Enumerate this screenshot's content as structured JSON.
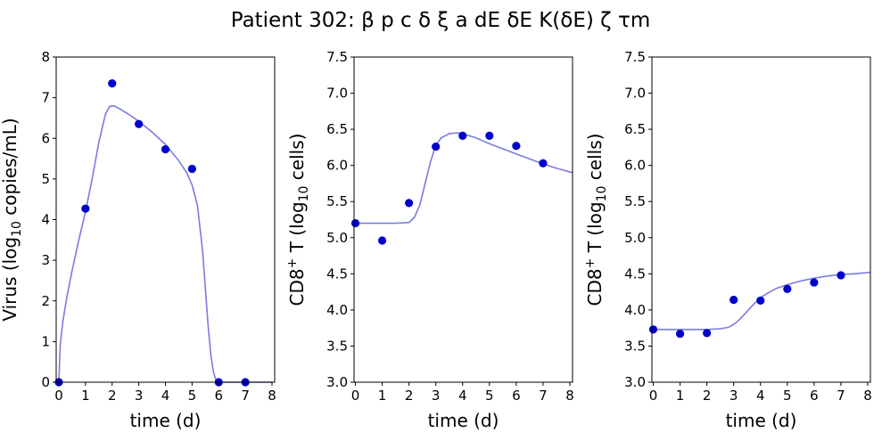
{
  "title": "Patient 302: β p c δ ξ a dE δE K(δE) ζ τm",
  "colors": {
    "points": "#0000cc",
    "fit": "#7b7bdf"
  },
  "chart_data": [
    {
      "type": "scatter",
      "xlabel": "time (d)",
      "ylabel": {
        "main": "Virus (log",
        "sub": "10",
        "tail": " copies/mL)"
      },
      "xlim": [
        -0.1,
        8.1
      ],
      "ylim": [
        0,
        8
      ],
      "xticks": [
        "0",
        "1",
        "2",
        "3",
        "4",
        "5",
        "6",
        "7",
        "8"
      ],
      "yticks": [
        "0",
        "1",
        "2",
        "3",
        "4",
        "5",
        "6",
        "7",
        "8"
      ],
      "points": {
        "x": [
          0,
          1,
          2,
          3,
          4,
          5,
          6,
          7
        ],
        "y": [
          0,
          4.27,
          7.35,
          6.35,
          5.73,
          5.25,
          0,
          0
        ]
      },
      "fit": {
        "x": [
          0,
          0.05,
          0.15,
          0.3,
          0.5,
          0.75,
          1,
          1.25,
          1.5,
          1.75,
          1.9,
          2,
          2.1,
          2.3,
          2.6,
          3,
          3.5,
          4,
          4.5,
          4.8,
          5,
          5.2,
          5.4,
          5.5,
          5.6,
          5.7,
          5.8,
          5.9,
          6,
          6.5,
          7,
          7.5,
          8
        ],
        "y": [
          0,
          0.9,
          1.5,
          2.1,
          2.75,
          3.5,
          4.2,
          5.0,
          5.9,
          6.6,
          6.78,
          6.8,
          6.79,
          6.72,
          6.6,
          6.42,
          6.15,
          5.85,
          5.45,
          5.15,
          4.85,
          4.35,
          3.2,
          2.3,
          1.4,
          0.7,
          0.25,
          0.05,
          0,
          0,
          0,
          0,
          0
        ]
      }
    },
    {
      "type": "scatter",
      "xlabel": "time (d)",
      "ylabel": {
        "main": "CD8",
        "sup": "+",
        "mid": " T (log",
        "sub": "10",
        "tail": " cells)"
      },
      "xlim": [
        -0.05,
        8.1
      ],
      "ylim": [
        3.0,
        7.5
      ],
      "xticks": [
        "0",
        "1",
        "2",
        "3",
        "4",
        "5",
        "6",
        "7",
        "8"
      ],
      "yticks": [
        "3.0",
        "3.5",
        "4.0",
        "4.5",
        "5.0",
        "5.5",
        "6.0",
        "6.5",
        "7.0",
        "7.5"
      ],
      "points": {
        "x": [
          0,
          1,
          2,
          3,
          4,
          5,
          6,
          7
        ],
        "y": [
          5.2,
          4.96,
          5.48,
          6.26,
          6.41,
          6.41,
          6.27,
          6.03
        ]
      },
      "fit": {
        "x": [
          0,
          0.5,
          1,
          1.5,
          2,
          2.2,
          2.4,
          2.6,
          2.8,
          3,
          3.2,
          3.5,
          3.8,
          4,
          4.5,
          5,
          5.5,
          6,
          6.5,
          7,
          7.5,
          8.1
        ],
        "y": [
          5.2,
          5.2,
          5.2,
          5.2,
          5.21,
          5.28,
          5.45,
          5.75,
          6.05,
          6.28,
          6.38,
          6.44,
          6.45,
          6.44,
          6.38,
          6.3,
          6.23,
          6.16,
          6.09,
          6.02,
          5.96,
          5.9
        ]
      }
    },
    {
      "type": "scatter",
      "xlabel": "time (d)",
      "ylabel": {
        "main": "CD8",
        "sup": "+",
        "mid": " T (log",
        "sub": "10",
        "tail": " cells)"
      },
      "xlim": [
        -0.05,
        8.1
      ],
      "ylim": [
        3.0,
        7.5
      ],
      "xticks": [
        "0",
        "1",
        "2",
        "3",
        "4",
        "5",
        "6",
        "7",
        "8"
      ],
      "yticks": [
        "3.0",
        "3.5",
        "4.0",
        "4.5",
        "5.0",
        "5.5",
        "6.0",
        "6.5",
        "7.0",
        "7.5"
      ],
      "points": {
        "x": [
          0,
          1,
          2,
          3,
          4,
          5,
          6,
          7
        ],
        "y": [
          3.73,
          3.67,
          3.68,
          4.14,
          4.13,
          4.29,
          4.38,
          4.48
        ]
      },
      "fit": {
        "x": [
          0,
          0.5,
          1,
          1.5,
          2,
          2.5,
          2.8,
          3,
          3.2,
          3.4,
          3.6,
          3.8,
          4,
          4.3,
          4.6,
          5,
          5.5,
          6,
          6.5,
          7,
          7.5,
          8.1
        ],
        "y": [
          3.73,
          3.73,
          3.73,
          3.73,
          3.73,
          3.74,
          3.76,
          3.8,
          3.86,
          3.94,
          4.02,
          4.1,
          4.17,
          4.24,
          4.3,
          4.35,
          4.4,
          4.44,
          4.47,
          4.49,
          4.5,
          4.52
        ]
      }
    }
  ]
}
